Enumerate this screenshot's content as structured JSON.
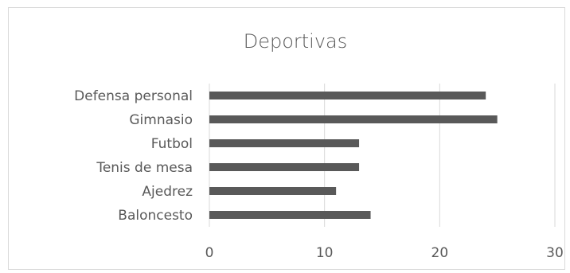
{
  "chart_data": {
    "type": "bar",
    "orientation": "horizontal",
    "title": "Deportivas",
    "categories": [
      "Defensa personal",
      "Gimnasio",
      "Futbol",
      "Tenis de mesa",
      "Ajedrez",
      "Baloncesto"
    ],
    "values": [
      24,
      25,
      13,
      13,
      11,
      14
    ],
    "xlabel": "",
    "ylabel": "",
    "xlim": [
      0,
      30
    ],
    "x_ticks": [
      0,
      10,
      20,
      30
    ],
    "x_tick_labels": [
      "0",
      "10",
      "20",
      "30"
    ],
    "grid": "vertical",
    "legend": "none",
    "bar_color": "#595959",
    "grid_color": "#d9d9d9"
  }
}
